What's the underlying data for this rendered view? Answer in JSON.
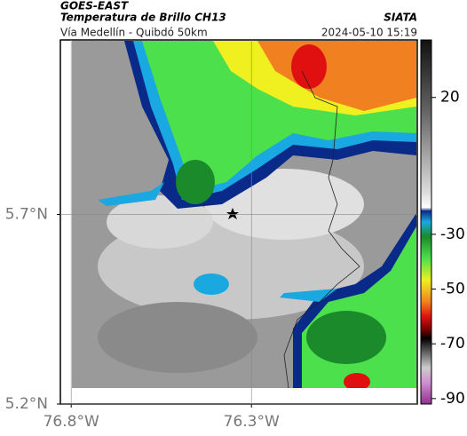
{
  "map": {
    "title": "GOES-EAST",
    "subtitle": "Temperatura de Brillo CH13",
    "source": "SIATA",
    "route": "Vía Medellín - Quibdó 50km",
    "datetime": "2024-05-10 15:19",
    "xlim": [
      -76.83,
      -75.84
    ],
    "ylim": [
      5.2,
      6.16
    ],
    "xticks": [
      {
        "value": -76.8,
        "label": "76.8°W"
      },
      {
        "value": -76.3,
        "label": "76.3°W"
      }
    ],
    "yticks": [
      {
        "value": 5.7,
        "label": "5.7°N"
      },
      {
        "value": 5.2,
        "label": "5.2°N"
      }
    ],
    "grid": true
  },
  "colorbar": {
    "lim": [
      41,
      -92
    ],
    "ticks": [
      20,
      -30,
      -50,
      -70,
      -90
    ]
  }
}
